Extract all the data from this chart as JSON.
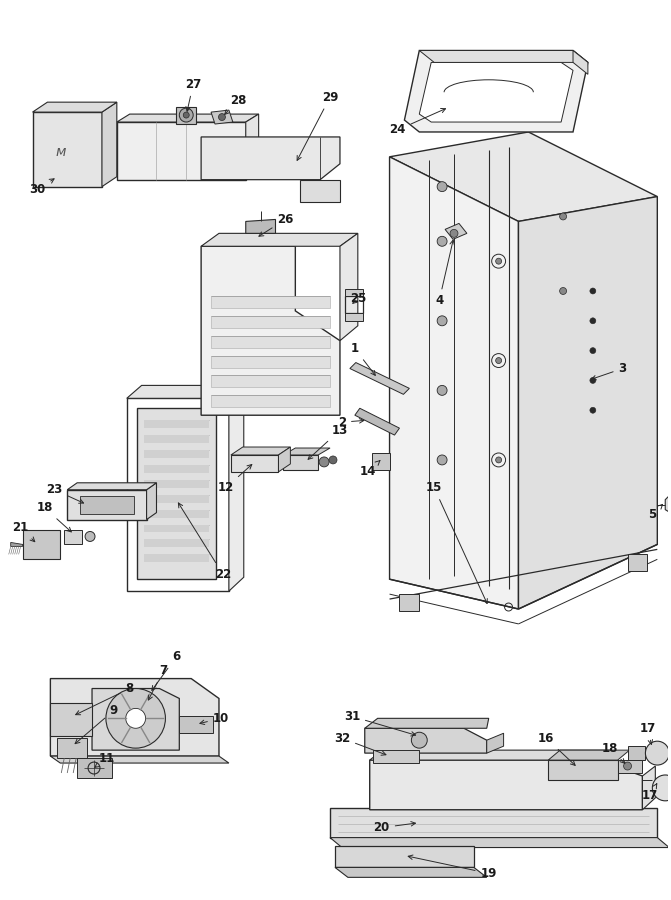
{
  "bg_color": "#ffffff",
  "line_color": "#2a2a2a",
  "label_color": "#1a1a1a",
  "label_fontsize": 8.5,
  "fig_width": 6.71,
  "fig_height": 9.0,
  "dpi": 100
}
